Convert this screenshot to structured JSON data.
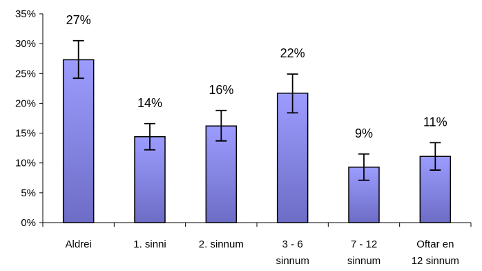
{
  "chart_data": {
    "type": "bar",
    "categories": [
      [
        "Aldrei"
      ],
      [
        "1. sinni"
      ],
      [
        "2. sinnum"
      ],
      [
        "3 - 6",
        "sinnum"
      ],
      [
        "7 - 12",
        "sinnum"
      ],
      [
        "Oftar en",
        "12 sinnum"
      ]
    ],
    "values": [
      27.3,
      14.4,
      16.2,
      21.7,
      9.3,
      11.1
    ],
    "error_low": [
      24.2,
      12.2,
      13.7,
      18.4,
      7.1,
      8.8
    ],
    "error_high": [
      30.5,
      16.6,
      18.8,
      24.9,
      11.5,
      13.4
    ],
    "data_labels": [
      "27%",
      "14%",
      "16%",
      "22%",
      "9%",
      "11%"
    ],
    "y_ticks": [
      0,
      5,
      10,
      15,
      20,
      25,
      30,
      35
    ],
    "y_tick_labels": [
      "0%",
      "5%",
      "10%",
      "15%",
      "20%",
      "25%",
      "30%",
      "35%"
    ],
    "ylim": [
      0,
      35
    ],
    "title": "",
    "xlabel": "",
    "ylabel": "",
    "grid": false,
    "legend": false,
    "colors": {
      "bar_top": "#9c9cff",
      "bar_bottom": "#6d6dc6",
      "bar_stroke": "#000000",
      "axis": "#000000"
    }
  }
}
